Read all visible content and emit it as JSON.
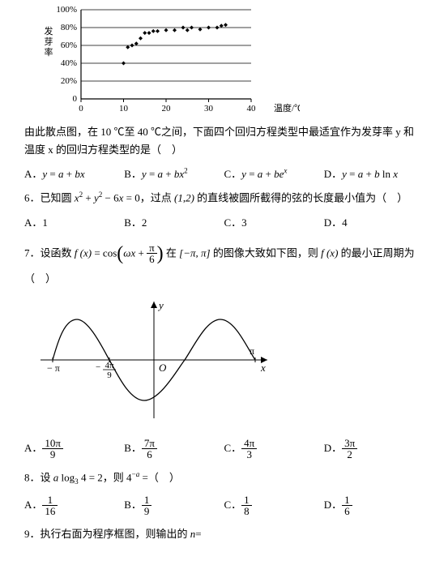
{
  "chart1": {
    "type": "scatter",
    "background_color": "#ffffff",
    "axis_color": "#000000",
    "grid_color": "#000000",
    "marker_color": "#000000",
    "marker_style": "diamond",
    "marker_size": 5,
    "xlim": [
      0,
      40
    ],
    "ylim": [
      0,
      100
    ],
    "xticks": [
      0,
      10,
      20,
      30,
      40
    ],
    "yticks": [
      0,
      20,
      40,
      60,
      80,
      100
    ],
    "ytick_labels": [
      "0",
      "20%",
      "40%",
      "60%",
      "80%",
      "100%"
    ],
    "y_label_vertical": "发芽率",
    "x_label_right": "温度/℃",
    "font_size": 11,
    "points": [
      [
        10,
        40
      ],
      [
        11,
        58
      ],
      [
        12,
        60
      ],
      [
        13,
        62
      ],
      [
        14,
        68
      ],
      [
        15,
        74
      ],
      [
        16,
        74
      ],
      [
        17,
        76
      ],
      [
        18,
        76
      ],
      [
        20,
        77
      ],
      [
        22,
        77
      ],
      [
        24,
        80
      ],
      [
        25,
        77
      ],
      [
        26,
        80
      ],
      [
        28,
        78
      ],
      [
        30,
        80
      ],
      [
        32,
        80
      ],
      [
        33,
        82
      ],
      [
        34,
        83
      ]
    ]
  },
  "intro_text": "由此散点图，在 10 ℃至 40 ℃之间，下面四个回归方程类型中最适宜作为发芽率 y 和温度 x 的回归方程类型的是（　）",
  "q5": {
    "choices": {
      "A": "y = a + bx",
      "B": "y = a + bx²",
      "C": "y = a + beˣ",
      "D": "y = a + b ln x"
    }
  },
  "q6": {
    "text": "6．已知圆 x² + y² − 6x = 0，过点 (1,2) 的直线被圆所截得的弦的长度最小值为（　）",
    "choices": {
      "A": "1",
      "B": "2",
      "C": "3",
      "D": "4"
    }
  },
  "q7": {
    "text_prefix": "7．设函数 ",
    "text_mid": " 在 [−π, π] 的图像大致如下图，则 f(x) 的最小正周期为（　）",
    "choices": {
      "A": "10π/9",
      "B": "7π/6",
      "C": "4π/3",
      "D": "3π/2"
    }
  },
  "chart2": {
    "type": "line",
    "axis_color": "#000000",
    "curve_color": "#000000",
    "line_width": 1.3,
    "y_label": "y",
    "x_label": "x",
    "x_labels": {
      "neg_pi": "−π",
      "neg_4pi9": "− 4π/9",
      "origin": "O",
      "pi": "π"
    },
    "xlim": [
      -3.5,
      3.5
    ],
    "ylim": [
      -1.2,
      1.2
    ]
  },
  "q8": {
    "text": "8．设 a log₃ 4 = 2，则 4⁻ᵃ =（　）",
    "choices": {
      "A": "1/16",
      "B": "1/9",
      "C": "1/8",
      "D": "1/6"
    }
  },
  "q9": {
    "text": "9．执行右面为程序框图，则输出的 n="
  }
}
